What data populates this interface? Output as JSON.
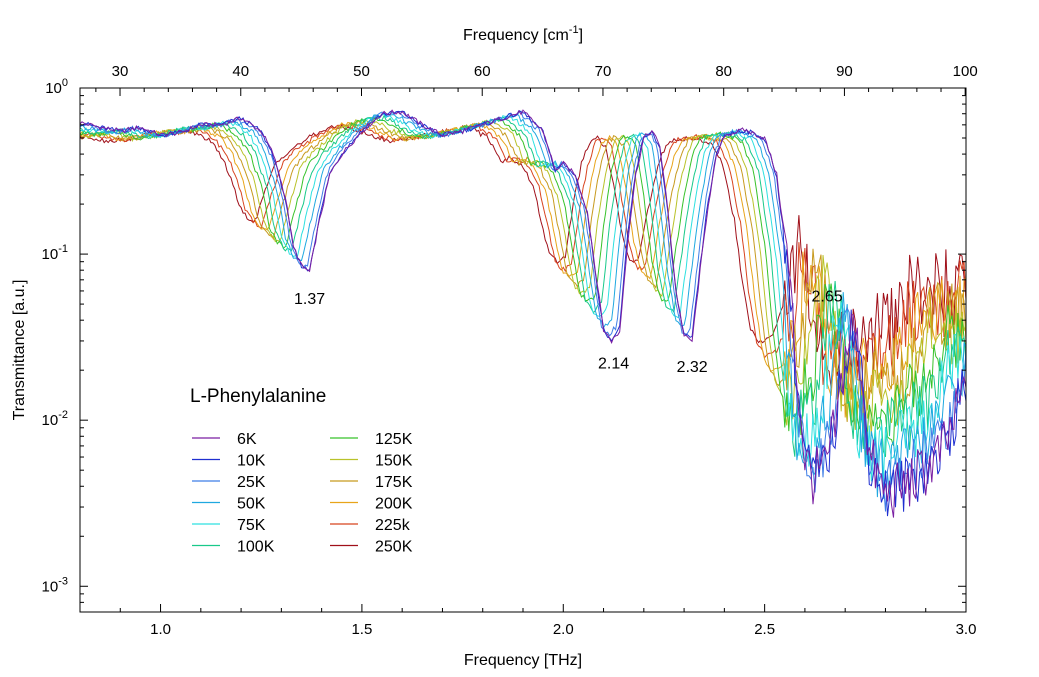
{
  "chart_data": {
    "type": "line",
    "title": "",
    "xlabel": "Frequency [THz]",
    "x2label_main": "Frequency [cm",
    "x2label_sup": "-1",
    "x2label_close": "]",
    "ylabel": "Transmittance [a.u.]",
    "xlim": [
      0.8,
      3.0
    ],
    "ylim": [
      0.0007,
      1.0
    ],
    "yscale": "log",
    "grid": false,
    "legend_title": "L-Phenylalanine",
    "legend_position": "lower-left",
    "x_ticks": [
      {
        "v": 1.0,
        "label": "1.0"
      },
      {
        "v": 1.5,
        "label": "1.5"
      },
      {
        "v": 2.0,
        "label": "2.0"
      },
      {
        "v": 2.5,
        "label": "2.5"
      },
      {
        "v": 3.0,
        "label": "3.0"
      }
    ],
    "x2_ticks": [
      {
        "v": 30,
        "label": "30"
      },
      {
        "v": 40,
        "label": "40"
      },
      {
        "v": 50,
        "label": "50"
      },
      {
        "v": 60,
        "label": "60"
      },
      {
        "v": 70,
        "label": "70"
      },
      {
        "v": 80,
        "label": "80"
      },
      {
        "v": 90,
        "label": "90"
      },
      {
        "v": 100,
        "label": "100"
      }
    ],
    "y_ticks": [
      {
        "v": 1.0,
        "base": "10",
        "exp": "0"
      },
      {
        "v": 0.1,
        "base": "10",
        "exp": "-1"
      },
      {
        "v": 0.01,
        "base": "10",
        "exp": "-2"
      },
      {
        "v": 0.001,
        "base": "10",
        "exp": "-3"
      }
    ],
    "annotations": [
      {
        "text": "1.37",
        "x": 1.37,
        "y": 0.05
      },
      {
        "text": "2.14",
        "x": 2.125,
        "y": 0.0205
      },
      {
        "text": "2.32",
        "x": 2.32,
        "y": 0.0195
      },
      {
        "text": "2.65",
        "x": 2.655,
        "y": 0.052
      }
    ],
    "series": [
      {
        "name": "6K",
        "color": "#7a1fa2",
        "T": 6
      },
      {
        "name": "10K",
        "color": "#1f2fd0",
        "T": 10
      },
      {
        "name": "25K",
        "color": "#3e7ee6",
        "T": 25
      },
      {
        "name": "50K",
        "color": "#1fa8e0",
        "T": 50
      },
      {
        "name": "75K",
        "color": "#2ee0e0",
        "T": 75
      },
      {
        "name": "100K",
        "color": "#19c98a",
        "T": 100
      },
      {
        "name": "125K",
        "color": "#37c22a",
        "T": 125
      },
      {
        "name": "150K",
        "color": "#b9c22a",
        "T": 150
      },
      {
        "name": "175K",
        "color": "#c79a1f",
        "T": 175
      },
      {
        "name": "200K",
        "color": "#e8a41a",
        "T": 200
      },
      {
        "name": "225k",
        "color": "#d8441f",
        "T": 225
      },
      {
        "name": "250K",
        "color": "#a0101a",
        "T": 250
      }
    ],
    "base_curve": [
      [
        0.8,
        0.62
      ],
      [
        0.85,
        0.58
      ],
      [
        0.9,
        0.55
      ],
      [
        0.95,
        0.58
      ],
      [
        1.0,
        0.52
      ],
      [
        1.05,
        0.54
      ],
      [
        1.1,
        0.6
      ],
      [
        1.15,
        0.6
      ],
      [
        1.2,
        0.66
      ],
      [
        1.25,
        0.55
      ],
      [
        1.28,
        0.4
      ],
      [
        1.31,
        0.22
      ],
      [
        1.33,
        0.11
      ],
      [
        1.35,
        0.085
      ],
      [
        1.37,
        0.078
      ],
      [
        1.39,
        0.14
      ],
      [
        1.42,
        0.3
      ],
      [
        1.45,
        0.4
      ],
      [
        1.5,
        0.55
      ],
      [
        1.55,
        0.7
      ],
      [
        1.6,
        0.72
      ],
      [
        1.65,
        0.6
      ],
      [
        1.7,
        0.52
      ],
      [
        1.75,
        0.55
      ],
      [
        1.8,
        0.6
      ],
      [
        1.85,
        0.66
      ],
      [
        1.9,
        0.72
      ],
      [
        1.95,
        0.55
      ],
      [
        1.98,
        0.32
      ],
      [
        2.0,
        0.35
      ],
      [
        2.03,
        0.3
      ],
      [
        2.06,
        0.18
      ],
      [
        2.08,
        0.08
      ],
      [
        2.1,
        0.035
      ],
      [
        2.12,
        0.03
      ],
      [
        2.14,
        0.034
      ],
      [
        2.16,
        0.12
      ],
      [
        2.18,
        0.3
      ],
      [
        2.2,
        0.5
      ],
      [
        2.22,
        0.55
      ],
      [
        2.24,
        0.45
      ],
      [
        2.26,
        0.18
      ],
      [
        2.28,
        0.06
      ],
      [
        2.3,
        0.032
      ],
      [
        2.32,
        0.03
      ],
      [
        2.34,
        0.08
      ],
      [
        2.36,
        0.2
      ],
      [
        2.38,
        0.38
      ],
      [
        2.4,
        0.52
      ],
      [
        2.45,
        0.56
      ],
      [
        2.5,
        0.5
      ],
      [
        2.53,
        0.3
      ],
      [
        2.56,
        0.08
      ],
      [
        2.58,
        0.018
      ],
      [
        2.6,
        0.006
      ],
      [
        2.62,
        0.0045
      ],
      [
        2.65,
        0.005
      ],
      [
        2.68,
        0.01
      ],
      [
        2.7,
        0.025
      ],
      [
        2.72,
        0.038
      ],
      [
        2.74,
        0.02
      ],
      [
        2.76,
        0.006
      ],
      [
        2.8,
        0.0035
      ],
      [
        2.85,
        0.004
      ],
      [
        2.9,
        0.005
      ],
      [
        2.95,
        0.007
      ],
      [
        3.0,
        0.016
      ]
    ]
  }
}
